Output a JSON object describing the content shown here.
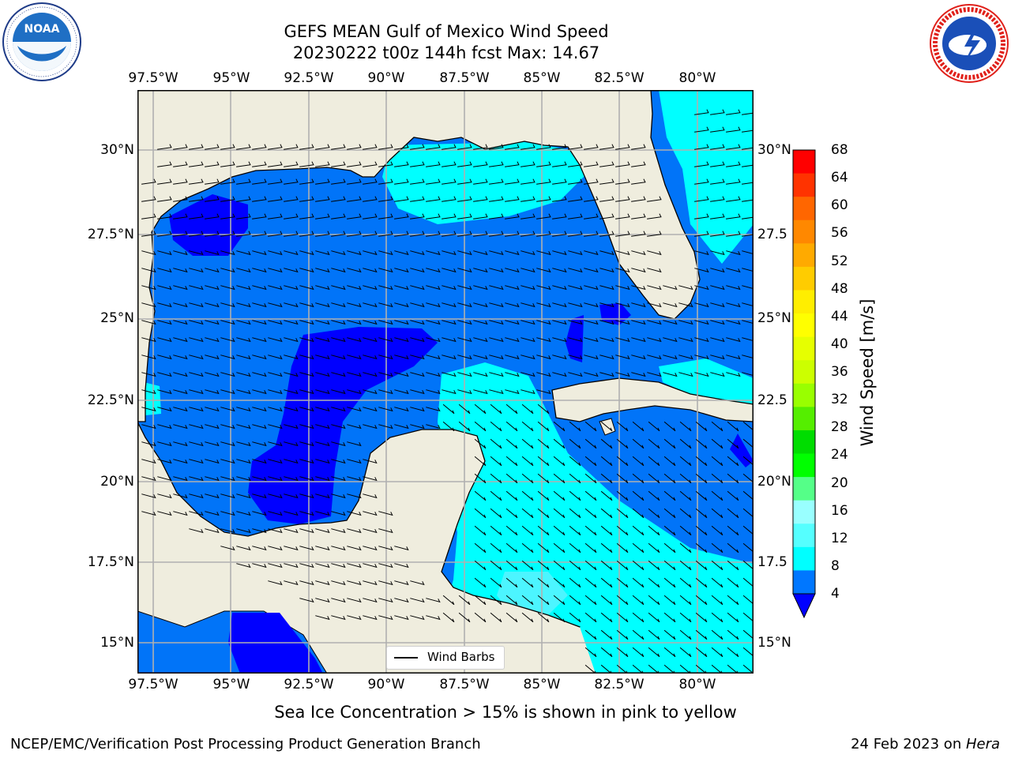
{
  "header": {
    "title_line1": "GEFS MEAN Gulf of Mexico Wind Speed",
    "title_line2": "20230222 t00z 144h fcst   Max: 14.67"
  },
  "logos": {
    "noaa": {
      "text": "NOAA",
      "ring_text": "NATIONAL OCEANIC AND ATMOSPHERIC ADMINISTRATION · U.S. DEPARTMENT OF COMMERCE"
    },
    "nws": {
      "ring_text": "NATIONAL WEATHER SERVICE"
    }
  },
  "map": {
    "lon_ticks": [
      "97.5°W",
      "95°W",
      "92.5°W",
      "90°W",
      "87.5°W",
      "85°W",
      "82.5°W",
      "80°W"
    ],
    "lat_ticks_left": [
      "30°N",
      "27.5°N",
      "25°N",
      "22.5°N",
      "20°N",
      "17.5°N",
      "15°N"
    ],
    "lat_ticks_right": [
      "30°N",
      "27.5",
      "25°N",
      "22.5",
      "20°N",
      "17.5",
      "15°N"
    ],
    "legend_label": "Wind Barbs",
    "colors": {
      "land": "#efedde",
      "dark_blue": "#0000ff",
      "blue": "#0174f8",
      "cyan": "#00ffff",
      "light_cyan": "#4cf5ff"
    }
  },
  "colorbar": {
    "label": "Wind Speed [m/s]",
    "ticks": [
      "68",
      "64",
      "60",
      "56",
      "52",
      "48",
      "44",
      "40",
      "36",
      "32",
      "28",
      "24",
      "20",
      "16",
      "12",
      "8",
      "4"
    ],
    "colors": [
      "#ff0000",
      "#ff3300",
      "#ff6600",
      "#ff8800",
      "#ffaa00",
      "#ffcc00",
      "#ffee00",
      "#ffff00",
      "#e6ff00",
      "#ccff00",
      "#99ff00",
      "#55ee00",
      "#00dd00",
      "#00ff00",
      "#55ff88",
      "#99ffff",
      "#55ffff",
      "#00ffff",
      "#0077ff"
    ],
    "extend_color": "#0000ff"
  },
  "footer": {
    "caption": "Sea Ice Concentration > 15% is shown in pink to yellow",
    "credit": "NCEP/EMC/Verification Post Processing Product Generation Branch",
    "date_prefix": "24 Feb 2023 on ",
    "machine": "Hera"
  }
}
